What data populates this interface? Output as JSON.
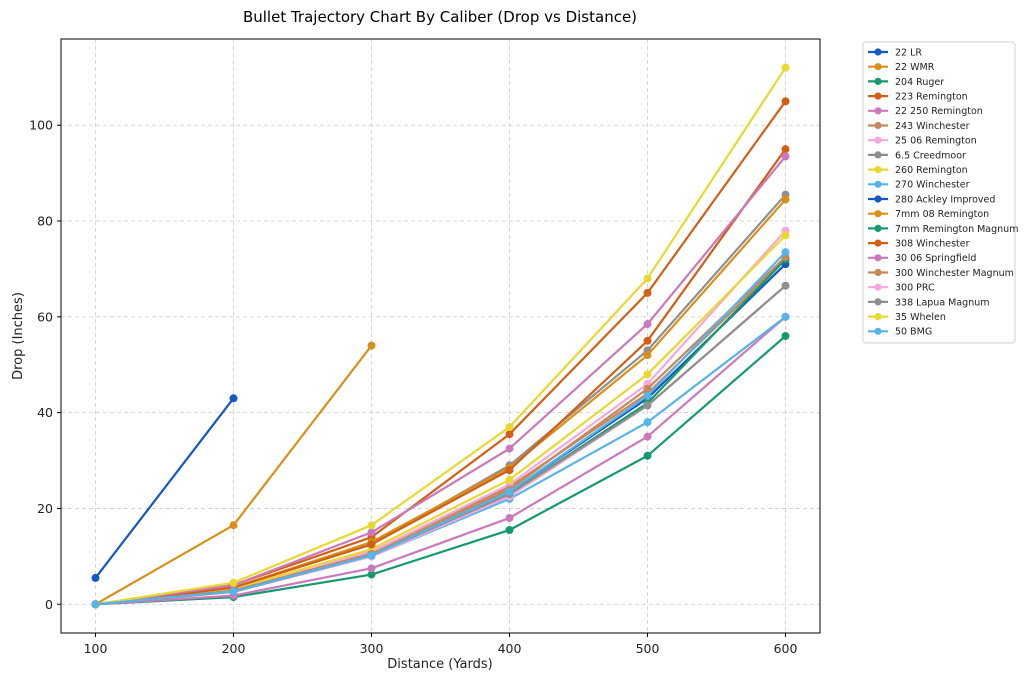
{
  "chart_data": {
    "type": "line",
    "title": "Bullet Trajectory Chart By Caliber (Drop vs Distance)",
    "xlabel": "Distance (Yards)",
    "ylabel": "Drop (Inches)",
    "xlim": [
      75,
      625
    ],
    "ylim": [
      -6,
      118
    ],
    "x_ticks": [
      100,
      200,
      300,
      400,
      500,
      600
    ],
    "y_ticks": [
      0,
      20,
      40,
      60,
      80,
      100
    ],
    "grid": true,
    "legend_position": "outside-right",
    "series": [
      {
        "name": "22 LR",
        "color": "#1558c0",
        "x": [
          100,
          200
        ],
        "y": [
          5.5,
          43
        ]
      },
      {
        "name": "22 WMR",
        "color": "#d9901a",
        "x": [
          100,
          200,
          300
        ],
        "y": [
          0,
          16.5,
          54
        ]
      },
      {
        "name": "204 Ruger",
        "color": "#159a70",
        "x": [
          100,
          200,
          300,
          400,
          500,
          600
        ],
        "y": [
          0,
          1.5,
          6.2,
          15.5,
          31,
          56
        ]
      },
      {
        "name": "223 Remington",
        "color": "#d35f14",
        "x": [
          100,
          200,
          300,
          400,
          500,
          600
        ],
        "y": [
          0,
          4,
          14,
          35.5,
          65,
          105
        ]
      },
      {
        "name": "22 250 Remington",
        "color": "#cc78bc",
        "x": [
          100,
          200,
          300,
          400,
          500,
          600
        ],
        "y": [
          0,
          1.8,
          7.5,
          18,
          35,
          60
        ]
      },
      {
        "name": "243 Winchester",
        "color": "#c8875a",
        "x": [
          100,
          200,
          300,
          400,
          500,
          600
        ],
        "y": [
          0,
          3,
          11,
          24.5,
          44,
          72
        ]
      },
      {
        "name": "25 06 Remington",
        "color": "#f5a8dc",
        "x": [
          100,
          200,
          300,
          400,
          500,
          600
        ],
        "y": [
          0,
          3,
          11,
          25,
          46,
          78
        ]
      },
      {
        "name": "6.5 Creedmoor",
        "color": "#8f8f8f",
        "x": [
          100,
          200,
          300,
          400,
          500,
          600
        ],
        "y": [
          0,
          3.5,
          12.5,
          29,
          53,
          85.5
        ]
      },
      {
        "name": "260 Remington",
        "color": "#e8d830",
        "x": [
          100,
          200,
          300,
          400,
          500,
          600
        ],
        "y": [
          0,
          3.2,
          11.5,
          26,
          48,
          77
        ]
      },
      {
        "name": "270 Winchester",
        "color": "#56b4e9",
        "x": [
          100,
          200,
          300,
          400,
          500,
          600
        ],
        "y": [
          0,
          2.6,
          10,
          22,
          38,
          60
        ]
      },
      {
        "name": "280 Ackley Improved",
        "color": "#1558c0",
        "x": [
          100,
          200,
          300,
          400,
          500,
          600
        ],
        "y": [
          0,
          2.8,
          10.5,
          23.5,
          43,
          71
        ]
      },
      {
        "name": "7mm 08 Remington",
        "color": "#d9901a",
        "x": [
          100,
          200,
          300,
          400,
          500,
          600
        ],
        "y": [
          0,
          3.5,
          13,
          28.5,
          52,
          84.5
        ]
      },
      {
        "name": "7mm Remington Magnum",
        "color": "#159a70",
        "x": [
          100,
          200,
          300,
          400,
          500,
          600
        ],
        "y": [
          0,
          2.7,
          10.3,
          23,
          42,
          72
        ]
      },
      {
        "name": "308 Winchester",
        "color": "#d35f14",
        "x": [
          100,
          200,
          300,
          400,
          500,
          600
        ],
        "y": [
          0,
          3.5,
          12.5,
          28,
          55,
          95
        ]
      },
      {
        "name": "30 06 Springfield",
        "color": "#cc78bc",
        "x": [
          100,
          200,
          300,
          400,
          500,
          600
        ],
        "y": [
          0,
          4,
          15,
          32.5,
          58.5,
          93.5
        ]
      },
      {
        "name": "300 Winchester Magnum",
        "color": "#c8875a",
        "x": [
          100,
          200,
          300,
          400,
          500,
          600
        ],
        "y": [
          0,
          2.8,
          10.5,
          24,
          45,
          72.5
        ]
      },
      {
        "name": "300 PRC",
        "color": "#f5a8dc",
        "x": [
          100,
          200,
          300,
          400,
          500,
          600
        ],
        "y": [
          0,
          2.6,
          10,
          22.5,
          41.5,
          66.5
        ]
      },
      {
        "name": "338 Lapua Magnum",
        "color": "#8f8f8f",
        "x": [
          100,
          200,
          300,
          400,
          500,
          600
        ],
        "y": [
          0,
          2.6,
          10.2,
          23,
          41.5,
          66.5
        ]
      },
      {
        "name": "35 Whelen",
        "color": "#e8d830",
        "x": [
          100,
          200,
          300,
          400,
          500,
          600
        ],
        "y": [
          0,
          4.5,
          16.5,
          37,
          68,
          112
        ]
      },
      {
        "name": "50 BMG",
        "color": "#56b4e9",
        "x": [
          100,
          200,
          300,
          400,
          500,
          600
        ],
        "y": [
          0,
          2.7,
          10.2,
          23.5,
          43.5,
          73.5
        ]
      }
    ]
  }
}
